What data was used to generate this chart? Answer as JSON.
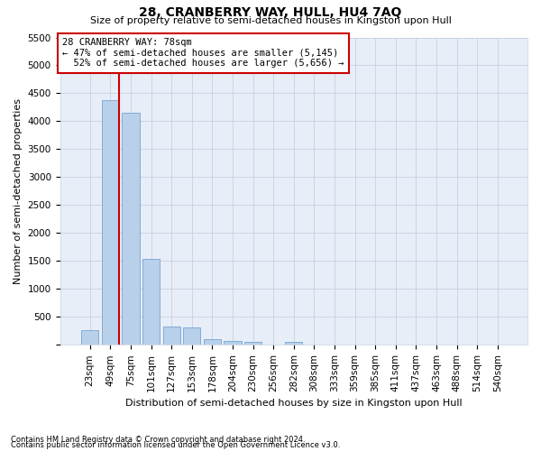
{
  "title": "28, CRANBERRY WAY, HULL, HU4 7AQ",
  "subtitle": "Size of property relative to semi-detached houses in Kingston upon Hull",
  "xlabel": "Distribution of semi-detached houses by size in Kingston upon Hull",
  "ylabel": "Number of semi-detached properties",
  "footnote1": "Contains HM Land Registry data © Crown copyright and database right 2024.",
  "footnote2": "Contains public sector information licensed under the Open Government Licence v3.0.",
  "categories": [
    "23sqm",
    "49sqm",
    "75sqm",
    "101sqm",
    "127sqm",
    "153sqm",
    "178sqm",
    "204sqm",
    "230sqm",
    "256sqm",
    "282sqm",
    "308sqm",
    "333sqm",
    "359sqm",
    "385sqm",
    "411sqm",
    "437sqm",
    "463sqm",
    "488sqm",
    "514sqm",
    "540sqm"
  ],
  "values": [
    270,
    4380,
    4150,
    1540,
    320,
    310,
    110,
    75,
    50,
    0,
    50,
    0,
    0,
    0,
    0,
    0,
    0,
    0,
    0,
    0,
    0
  ],
  "bar_color": "#b8d0ea",
  "bar_edge_color": "#6699cc",
  "property_sqm": 78,
  "property_label": "28 CRANBERRY WAY: 78sqm",
  "pct_smaller": 47,
  "count_smaller": 5145,
  "pct_larger": 52,
  "count_larger": 5656,
  "ylim": [
    0,
    5500
  ],
  "yticks": [
    0,
    500,
    1000,
    1500,
    2000,
    2500,
    3000,
    3500,
    4000,
    4500,
    5000,
    5500
  ],
  "annotation_box_color": "#ffffff",
  "annotation_box_edge": "#cc0000",
  "vline_color": "#cc0000",
  "background_color": "#e8eef8",
  "grid_color": "#c8d0e0",
  "title_fontsize": 10,
  "subtitle_fontsize": 8,
  "ylabel_fontsize": 8,
  "xlabel_fontsize": 8,
  "tick_fontsize": 7.5,
  "footnote_fontsize": 6
}
